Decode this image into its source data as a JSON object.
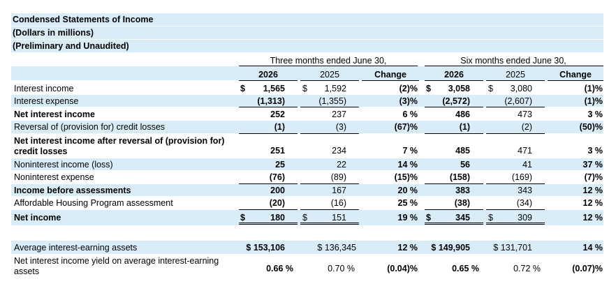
{
  "title_lines": [
    "Condensed Statements of Income",
    "(Dollars in millions)",
    "(Preliminary and Unaudited)"
  ],
  "period_headers": [
    "Three months ended June 30,",
    "Six months ended June 30,"
  ],
  "column_headers": [
    "2026",
    "2025",
    "Change",
    "2026",
    "2025",
    "Change"
  ],
  "currency_symbol": "$",
  "rows": [
    {
      "label": [
        "Interest income"
      ],
      "bold": false,
      "cells": [
        "1,565",
        "1,592",
        "(2)%",
        "3,058",
        "3,080",
        "(1)%"
      ]
    },
    {
      "label": [
        "Interest expense"
      ],
      "bold": false,
      "cells": [
        "(1,313)",
        "(1,355)",
        "(3)%",
        "(2,572)",
        "(2,607)",
        "(1)%"
      ]
    },
    {
      "label": [
        "Net interest income"
      ],
      "bold": true,
      "cells": [
        "252",
        "237",
        "6 %",
        "486",
        "473",
        "3 %"
      ]
    },
    {
      "label": [
        "Reversal of (provision for) credit losses"
      ],
      "bold": false,
      "cells": [
        "(1)",
        "(3)",
        "(67)%",
        "(1)",
        "(2)",
        "(50)%"
      ]
    },
    {
      "label": [
        "Net interest income after reversal of (provision for)",
        "credit losses"
      ],
      "bold": true,
      "cells": [
        "251",
        "234",
        "7 %",
        "485",
        "471",
        "3 %"
      ]
    },
    {
      "label": [
        "Noninterest income (loss)"
      ],
      "bold": false,
      "cells": [
        "25",
        "22",
        "14 %",
        "56",
        "41",
        "37 %"
      ]
    },
    {
      "label": [
        "Noninterest expense"
      ],
      "bold": false,
      "cells": [
        "(76)",
        "(89)",
        "(15)%",
        "(158)",
        "(169)",
        "(7)%"
      ]
    },
    {
      "label": [
        "Income before assessments"
      ],
      "bold": true,
      "cells": [
        "200",
        "167",
        "20 %",
        "383",
        "343",
        "12 %"
      ]
    },
    {
      "label": [
        "Affordable Housing Program assessment"
      ],
      "bold": false,
      "cells": [
        "(20)",
        "(16)",
        "25 %",
        "(38)",
        "(34)",
        "12 %"
      ]
    },
    {
      "label": [
        "Net income"
      ],
      "bold": true,
      "cells": [
        "180",
        "151",
        "19 %",
        "345",
        "309",
        "12 %"
      ]
    },
    {
      "label": [
        "Average interest-earning assets"
      ],
      "bold": false,
      "cells": [
        "$ 153,106",
        "$ 136,345",
        "12 %",
        "$ 149,905",
        "$ 131,701",
        "14 %"
      ]
    },
    {
      "label": [
        "Net interest income yield on average interest-earning",
        "assets"
      ],
      "bold": false,
      "cells": [
        "0.66 %",
        "0.70 %",
        "(0.04)%",
        "0.65 %",
        "0.72 %",
        "(0.07)%"
      ]
    }
  ],
  "colors": {
    "band": "#d9edf9",
    "text": "#000000"
  }
}
